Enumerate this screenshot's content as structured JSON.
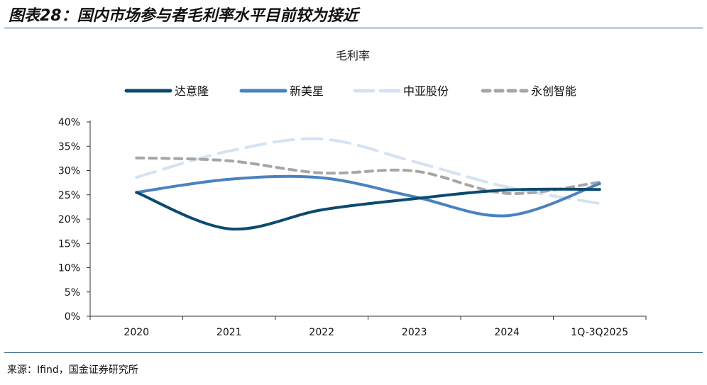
{
  "title": "图表28：国内市场参与者毛利率水平目前较为接近",
  "source": "来源：Ifind，国金证券研究所",
  "chart_data": {
    "type": "line",
    "title": "毛利率",
    "categories": [
      "2020",
      "2021",
      "2022",
      "2023",
      "2024",
      "1Q-3Q2025"
    ],
    "ylim": [
      0,
      40
    ],
    "yticks": [
      "0%",
      "5%",
      "10%",
      "15%",
      "20%",
      "25%",
      "30%",
      "35%",
      "40%"
    ],
    "legend_position": "top",
    "series": [
      {
        "name": "达意隆",
        "values": [
          25.5,
          18.0,
          21.9,
          24.2,
          26.0,
          26.1
        ],
        "color": "#0b4a6f",
        "dash": ""
      },
      {
        "name": "新美星",
        "values": [
          25.5,
          28.2,
          28.5,
          24.6,
          20.7,
          27.3
        ],
        "color": "#4a82c0",
        "dash": ""
      },
      {
        "name": "中亚股份",
        "values": [
          28.6,
          34.0,
          36.5,
          31.8,
          26.6,
          23.2
        ],
        "color": "#d3e3f3",
        "dash": "28,12"
      },
      {
        "name": "永创智能",
        "values": [
          32.6,
          32.0,
          29.5,
          29.9,
          25.3,
          27.6
        ],
        "color": "#a6a6a6",
        "dash": "10,8"
      }
    ]
  }
}
